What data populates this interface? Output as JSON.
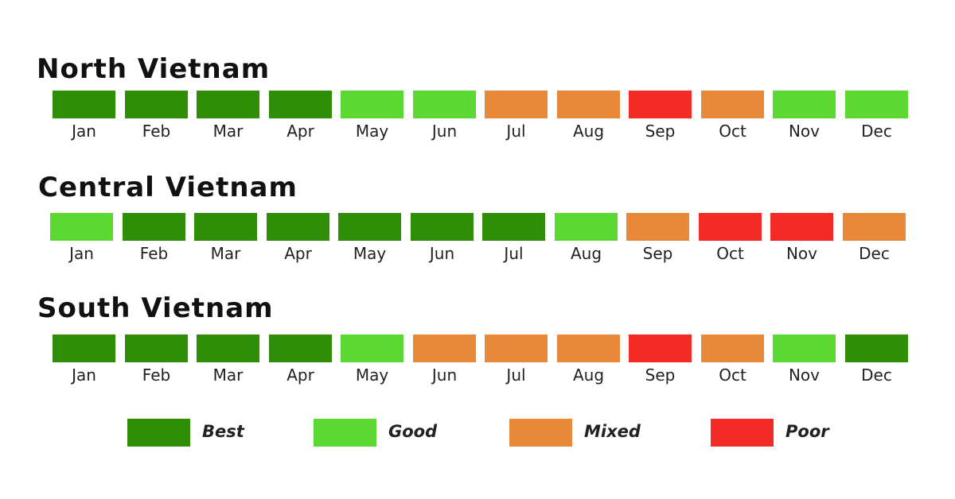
{
  "chart_data": {
    "type": "heatmap",
    "categories": [
      "Jan",
      "Feb",
      "Mar",
      "Apr",
      "May",
      "Jun",
      "Jul",
      "Aug",
      "Sep",
      "Oct",
      "Nov",
      "Dec"
    ],
    "series": [
      {
        "name": "North Vietnam",
        "values": [
          "Best",
          "Best",
          "Best",
          "Best",
          "Good",
          "Good",
          "Mixed",
          "Mixed",
          "Poor",
          "Mixed",
          "Good",
          "Good"
        ]
      },
      {
        "name": "Central Vietnam",
        "values": [
          "Good",
          "Best",
          "Best",
          "Best",
          "Best",
          "Best",
          "Best",
          "Good",
          "Mixed",
          "Poor",
          "Poor",
          "Mixed"
        ]
      },
      {
        "name": "South Vietnam",
        "values": [
          "Best",
          "Best",
          "Best",
          "Best",
          "Good",
          "Mixed",
          "Mixed",
          "Mixed",
          "Poor",
          "Mixed",
          "Good",
          "Best"
        ]
      }
    ],
    "legend": [
      {
        "label": "Best",
        "color": "#2e8e05"
      },
      {
        "label": "Good",
        "color": "#5bd932"
      },
      {
        "label": "Mixed",
        "color": "#e8893a"
      },
      {
        "label": "Poor",
        "color": "#f42a26"
      }
    ],
    "legend_placement": "bottom"
  }
}
